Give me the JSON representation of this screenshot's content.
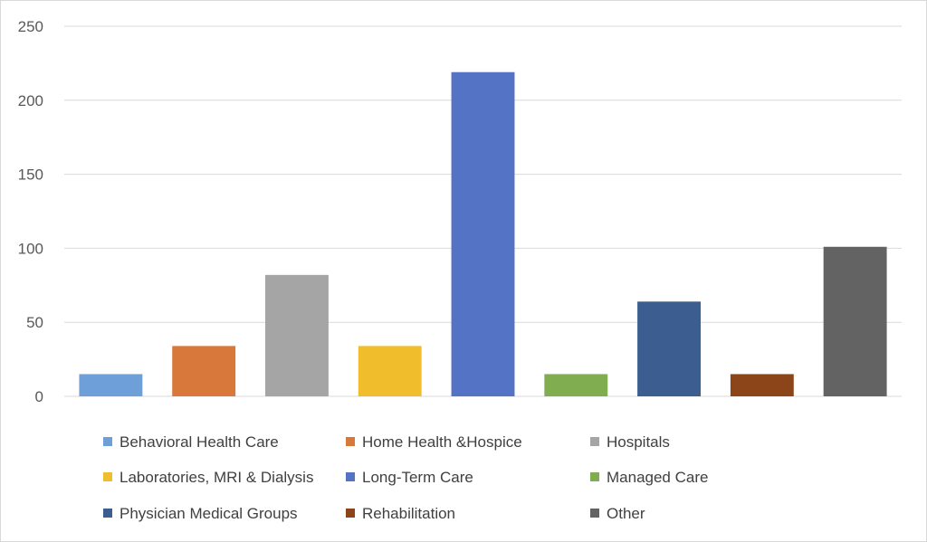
{
  "chart_data": {
    "type": "bar",
    "title": "",
    "xlabel": "",
    "ylabel": "",
    "ylim": [
      0,
      250
    ],
    "yticks": [
      0,
      50,
      100,
      150,
      200,
      250
    ],
    "grid": true,
    "legend_position": "bottom",
    "categories": [
      "Behavioral Health Care",
      "Home Health &Hospice",
      "Hospitals",
      "Laboratories, MRI & Dialysis",
      "Long-Term Care",
      "Managed Care",
      "Physician Medical Groups",
      "Rehabilitation",
      "Other"
    ],
    "values": [
      15,
      34,
      82,
      34,
      219,
      15,
      64,
      15,
      101
    ],
    "colors": [
      "#6f9fd8",
      "#d8783a",
      "#a5a5a5",
      "#f0be2d",
      "#5573c4",
      "#7fad4f",
      "#3b5d8f",
      "#8c4519",
      "#636363"
    ]
  }
}
